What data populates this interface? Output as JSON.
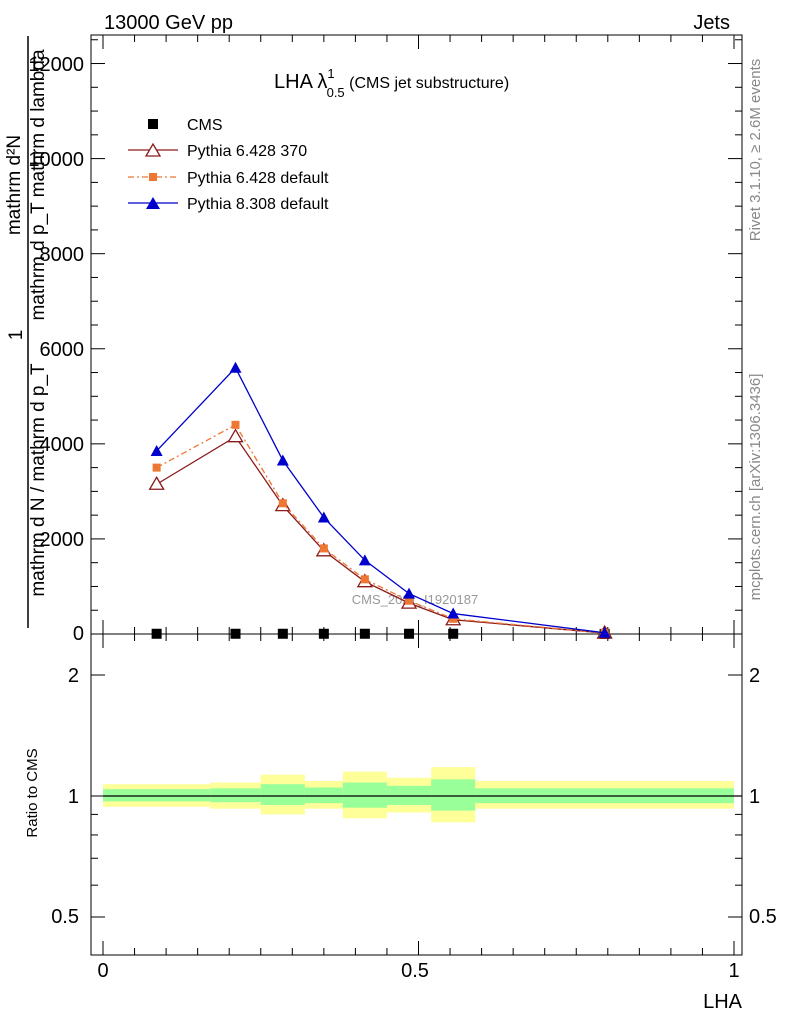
{
  "header": {
    "left": "13000 GeV pp",
    "right": "Jets"
  },
  "side_labels": {
    "rivet": "Rivet 3.1.10, ≥ 2.6M events",
    "mcplots": "mcplots.cern.ch [arXiv:1306.3436]"
  },
  "main_title": {
    "lambda": "LHA λ",
    "sup": "1",
    "sub": "0.5",
    "rest": " (CMS jet substructure)"
  },
  "watermark": "CMS_2021_I1920187",
  "axes": {
    "y_top_label_line1": "mathrm d²N",
    "y_top_label_line2": "mathrm d p_T mathrm d lambda",
    "y_top_label_prefix": "1",
    "y_top_label_line3": "mathrm d N / mathrm d p_T",
    "y_bottom_label": "Ratio to CMS",
    "x_label": "LHA",
    "y_top_ticks": [
      "0",
      "2000",
      "4000",
      "6000",
      "8000",
      "10000",
      "12000"
    ],
    "y_bottom_ticks": [
      "0.5",
      "1",
      "2"
    ],
    "x_ticks": [
      "0",
      "0.5",
      "1"
    ]
  },
  "chart_data": {
    "type": "line",
    "x_range": [
      0,
      1
    ],
    "y_range": [
      0,
      12600
    ],
    "ratio_range": [
      0.4,
      2.4
    ],
    "legend_position": "top-left",
    "x": [
      0.085,
      0.21,
      0.285,
      0.35,
      0.415,
      0.485,
      0.555,
      0.795
    ],
    "series": [
      {
        "name": "CMS",
        "color": "#000000",
        "marker": "square",
        "values": [
          5,
          5,
          5,
          5,
          5,
          5,
          5,
          2
        ]
      },
      {
        "name": "Pythia 6.428 370",
        "color": "#8b1a1a",
        "marker": "open-triangle",
        "dash": "",
        "values": [
          3150,
          4150,
          2700,
          1750,
          1100,
          650,
          300,
          20
        ]
      },
      {
        "name": "Pythia 6.428 default",
        "color": "#ee7733",
        "marker": "filled-square",
        "dash": "6,3,2,3",
        "values": [
          3500,
          4400,
          2750,
          1800,
          1150,
          700,
          320,
          20
        ]
      },
      {
        "name": "Pythia 8.308 default",
        "color": "#0000cc",
        "marker": "filled-triangle",
        "dash": "",
        "values": [
          3850,
          5600,
          3650,
          2450,
          1550,
          850,
          430,
          25
        ]
      }
    ],
    "ratio_bands": [
      {
        "x0": 0.0,
        "x1": 0.17,
        "inner": [
          0.97,
          1.04
        ],
        "outer": [
          0.94,
          1.07
        ]
      },
      {
        "x0": 0.17,
        "x1": 0.25,
        "inner": [
          0.965,
          1.045
        ],
        "outer": [
          0.93,
          1.08
        ]
      },
      {
        "x0": 0.25,
        "x1": 0.32,
        "inner": [
          0.95,
          1.07
        ],
        "outer": [
          0.9,
          1.13
        ]
      },
      {
        "x0": 0.32,
        "x1": 0.38,
        "inner": [
          0.96,
          1.05
        ],
        "outer": [
          0.93,
          1.09
        ]
      },
      {
        "x0": 0.38,
        "x1": 0.45,
        "inner": [
          0.935,
          1.08
        ],
        "outer": [
          0.88,
          1.15
        ]
      },
      {
        "x0": 0.45,
        "x1": 0.52,
        "inner": [
          0.95,
          1.06
        ],
        "outer": [
          0.91,
          1.11
        ]
      },
      {
        "x0": 0.52,
        "x1": 0.59,
        "inner": [
          0.92,
          1.1
        ],
        "outer": [
          0.86,
          1.18
        ]
      },
      {
        "x0": 0.59,
        "x1": 1.0,
        "inner": [
          0.96,
          1.045
        ],
        "outer": [
          0.93,
          1.09
        ]
      }
    ]
  }
}
